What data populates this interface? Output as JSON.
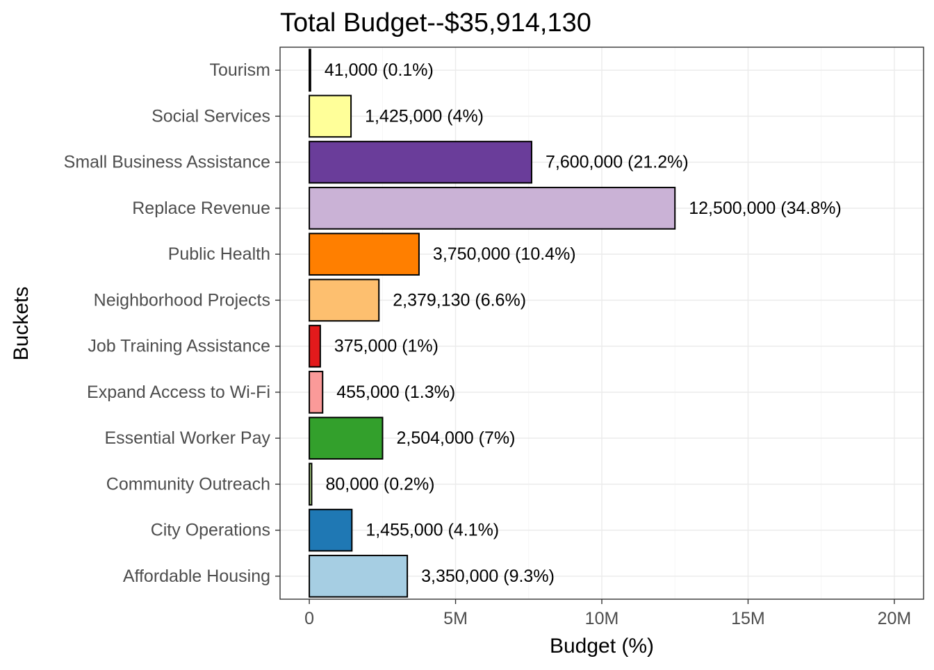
{
  "chart_data": {
    "type": "bar",
    "orientation": "horizontal",
    "title": "Total Budget--$35,914,130",
    "xlabel": "Budget (%)",
    "ylabel": "Buckets",
    "xlim": [
      -1000000,
      21000000
    ],
    "xticks": [
      0,
      5000000,
      10000000,
      15000000,
      20000000
    ],
    "xtick_labels": [
      "0",
      "5M",
      "10M",
      "15M",
      "20M"
    ],
    "grid": true,
    "legend": "none",
    "categories": [
      "Affordable Housing",
      "City Operations",
      "Community Outreach",
      "Essential Worker Pay",
      "Expand Access to Wi-Fi",
      "Job Training Assistance",
      "Neighborhood Projects",
      "Public Health",
      "Replace Revenue",
      "Small Business Assistance",
      "Social Services",
      "Tourism"
    ],
    "values": [
      3350000,
      1455000,
      80000,
      2504000,
      455000,
      375000,
      2379130,
      3750000,
      12500000,
      7600000,
      1425000,
      41000
    ],
    "data_labels": [
      "3,350,000 (9.3%)",
      "1,455,000 (4.1%)",
      "80,000 (0.2%)",
      "2,504,000 (7%)",
      "455,000 (1.3%)",
      "375,000 (1%)",
      "2,379,130 (6.6%)",
      "3,750,000 (10.4%)",
      "12,500,000 (34.8%)",
      "7,600,000 (21.2%)",
      "1,425,000 (4%)",
      "41,000 (0.1%)"
    ],
    "colors": [
      "#A6CEE3",
      "#1F78B4",
      "#B2DF8A",
      "#33A02C",
      "#FB9A99",
      "#E31A1C",
      "#FDBF6F",
      "#FF7F00",
      "#CAB2D6",
      "#6A3D9A",
      "#FFFF99",
      "#B15928"
    ]
  }
}
